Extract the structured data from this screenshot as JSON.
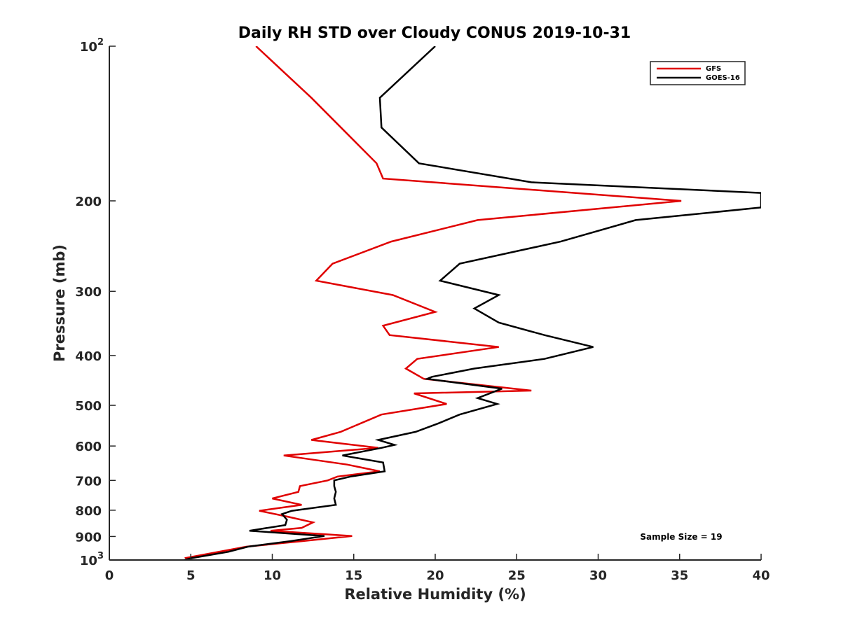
{
  "chart_data": {
    "type": "line",
    "title": "Daily RH STD over Cloudy CONUS 2019-10-31",
    "xlabel": "Relative Humidity (%)",
    "ylabel": "Pressure (mb)",
    "xlim": [
      0,
      40
    ],
    "ylim": [
      100,
      1000
    ],
    "yscale": "log",
    "yreversed": true,
    "grid": false,
    "legend_position": "top-right",
    "x_ticks": [
      "0",
      "5",
      "10",
      "15",
      "20",
      "25",
      "30",
      "35",
      "40"
    ],
    "y_ticks": [
      {
        "value": 100,
        "base": "10",
        "exp": "2"
      },
      {
        "value": 200,
        "label": "200"
      },
      {
        "value": 300,
        "label": "300"
      },
      {
        "value": 400,
        "label": "400"
      },
      {
        "value": 500,
        "label": "500"
      },
      {
        "value": 600,
        "label": "600"
      },
      {
        "value": 700,
        "label": "700"
      },
      {
        "value": 800,
        "label": "800"
      },
      {
        "value": 900,
        "label": "900"
      },
      {
        "value": 1000,
        "base": "10",
        "exp": "3"
      }
    ],
    "annotation": "Sample Size = 19",
    "series": [
      {
        "name": "GFS",
        "color": "#e00000",
        "points": [
          [
            9.0,
            100
          ],
          [
            12.4,
            126
          ],
          [
            16.4,
            169
          ],
          [
            16.8,
            181
          ],
          [
            35.1,
            200
          ],
          [
            22.6,
            218
          ],
          [
            17.3,
            240
          ],
          [
            13.7,
            265
          ],
          [
            12.7,
            286
          ],
          [
            17.4,
            305
          ],
          [
            20.0,
            329
          ],
          [
            16.8,
            350
          ],
          [
            17.2,
            365
          ],
          [
            23.9,
            385
          ],
          [
            18.9,
            406
          ],
          [
            18.2,
            424
          ],
          [
            19.3,
            444
          ],
          [
            25.9,
            468
          ],
          [
            18.7,
            474
          ],
          [
            20.7,
            497
          ],
          [
            16.7,
            521
          ],
          [
            14.2,
            563
          ],
          [
            12.4,
            584
          ],
          [
            16.5,
            605
          ],
          [
            10.7,
            626
          ],
          [
            14.6,
            652
          ],
          [
            16.6,
            672
          ],
          [
            14.0,
            688
          ],
          [
            13.4,
            700
          ],
          [
            11.7,
            718
          ],
          [
            11.6,
            737
          ],
          [
            10.0,
            759
          ],
          [
            11.8,
            781
          ],
          [
            9.2,
            802
          ],
          [
            10.9,
            823
          ],
          [
            12.5,
            845
          ],
          [
            11.8,
            866
          ],
          [
            9.9,
            877
          ],
          [
            14.9,
            898
          ],
          [
            11.8,
            919
          ],
          [
            8.4,
            942
          ],
          [
            4.7,
            991
          ],
          [
            4.8,
            1000
          ]
        ]
      },
      {
        "name": "GOES-16",
        "color": "#000000",
        "points": [
          [
            20.0,
            100
          ],
          [
            16.6,
            126
          ],
          [
            16.7,
            144
          ],
          [
            19.0,
            169
          ],
          [
            25.9,
            184
          ],
          [
            40.0,
            193
          ],
          [
            40.0,
            206
          ],
          [
            32.3,
            218
          ],
          [
            27.7,
            240
          ],
          [
            21.5,
            265
          ],
          [
            20.3,
            286
          ],
          [
            23.9,
            305
          ],
          [
            22.4,
            324
          ],
          [
            23.9,
            345
          ],
          [
            26.7,
            365
          ],
          [
            29.7,
            385
          ],
          [
            26.7,
            406
          ],
          [
            22.4,
            424
          ],
          [
            19.8,
            440
          ],
          [
            19.5,
            444
          ],
          [
            24.1,
            464
          ],
          [
            22.6,
            484
          ],
          [
            23.8,
            497
          ],
          [
            21.5,
            521
          ],
          [
            20.2,
            542
          ],
          [
            18.8,
            563
          ],
          [
            16.5,
            584
          ],
          [
            17.5,
            597
          ],
          [
            16.7,
            605
          ],
          [
            14.3,
            626
          ],
          [
            16.8,
            646
          ],
          [
            16.9,
            672
          ],
          [
            14.8,
            688
          ],
          [
            13.8,
            700
          ],
          [
            13.8,
            718
          ],
          [
            13.9,
            737
          ],
          [
            13.8,
            759
          ],
          [
            13.9,
            781
          ],
          [
            11.2,
            802
          ],
          [
            10.6,
            814
          ],
          [
            10.9,
            835
          ],
          [
            10.8,
            855
          ],
          [
            8.6,
            877
          ],
          [
            13.2,
            898
          ],
          [
            11.1,
            919
          ],
          [
            8.5,
            942
          ],
          [
            7.3,
            964
          ],
          [
            5.1,
            991
          ],
          [
            4.6,
            1000
          ]
        ]
      }
    ]
  }
}
